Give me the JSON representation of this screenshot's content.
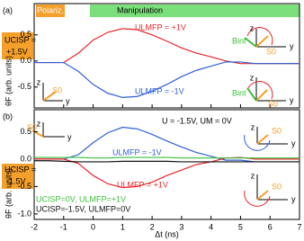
{
  "chart_data": [
    {
      "type": "line",
      "panel_label": "(a)",
      "ylabel": "θF (arb. units)",
      "x": [
        -2,
        -1.5,
        -1,
        -0.5,
        0,
        0.5,
        1,
        1.5,
        2,
        2.5,
        3,
        3.5,
        4,
        4.5,
        5,
        5.5,
        6,
        6.5,
        7
      ],
      "xlim": [
        -2,
        7
      ],
      "xticks": [
        -2,
        -1,
        0,
        1,
        2,
        3,
        4,
        5,
        6,
        7
      ],
      "ylim": [
        -0.9,
        1.1
      ],
      "yticks": [
        {
          "value": -0.5,
          "label": "-0.5"
        },
        {
          "value": 0,
          "label": "0.0"
        },
        {
          "value": 0.5,
          "label": "0.5"
        }
      ],
      "series": [
        {
          "name": "ULMFP = +1V",
          "color": "#e8252a",
          "values": [
            -0.03,
            -0.03,
            -0.03,
            0.15,
            0.4,
            0.55,
            0.62,
            0.6,
            0.5,
            0.38,
            0.25,
            0.15,
            0.08,
            0.0,
            -0.05,
            -0.05,
            -0.05,
            -0.05,
            -0.05
          ]
        },
        {
          "name": "ULMFP = -1V",
          "color": "#2f5fd8",
          "values": [
            -0.03,
            -0.03,
            -0.03,
            -0.2,
            -0.45,
            -0.62,
            -0.7,
            -0.68,
            -0.58,
            -0.45,
            -0.3,
            -0.18,
            -0.1,
            -0.02,
            -0.02,
            -0.05,
            -0.05,
            -0.05,
            -0.05
          ]
        }
      ],
      "annotations": [
        "Polariz.",
        "Manipulation",
        "UCISP =",
        "+1.5V",
        "z",
        "y",
        "S0",
        "z",
        "y",
        "Bint",
        "S0",
        "z",
        "y",
        "Bint",
        "S0"
      ]
    },
    {
      "type": "line",
      "panel_label": "(b)",
      "ylabel": "θF (arb. units)",
      "xlabel": "Δt (ns)",
      "x": [
        -2,
        -1.5,
        -1,
        -0.5,
        0,
        0.5,
        1,
        1.5,
        2,
        2.5,
        3,
        3.5,
        4,
        4.5,
        5,
        5.5,
        6,
        6.5,
        7
      ],
      "xlim": [
        -2,
        7
      ],
      "xticks": [
        -2,
        -1,
        0,
        1,
        2,
        3,
        4,
        5,
        6,
        7
      ],
      "ylim": [
        -1.1,
        0.9
      ],
      "yticks": [
        {
          "value": -1,
          "label": "-1.0"
        },
        {
          "value": -0.5,
          "label": "-0.5"
        },
        {
          "value": 0,
          "label": "0.0"
        },
        {
          "value": 0.5,
          "label": "0.5"
        }
      ],
      "series": [
        {
          "name": "ULMFP = -1V",
          "color": "#2f5fd8",
          "values": [
            0,
            0,
            0,
            0.08,
            0.3,
            0.48,
            0.58,
            0.55,
            0.45,
            0.33,
            0.22,
            0.12,
            0.05,
            -0.02,
            -0.02,
            -0.05,
            -0.05,
            -0.05,
            -0.05
          ]
        },
        {
          "name": "ULMFP = +1V",
          "color": "#e8252a",
          "values": [
            0,
            0,
            0,
            -0.08,
            -0.3,
            -0.45,
            -0.52,
            -0.5,
            -0.42,
            -0.3,
            -0.2,
            -0.1,
            -0.05,
            0.02,
            0.03,
            0,
            0,
            0,
            0
          ]
        },
        {
          "name": "UCISP=0V, ULMFP=+1V",
          "color": "#3bbf3b",
          "values": [
            0.03,
            0.03,
            0.03,
            0.03,
            0.02,
            0.02,
            0.03,
            0.03,
            0.03,
            0.03,
            0.02,
            0.02,
            0.02,
            0.02,
            0.02,
            0.02,
            0.02,
            0.02,
            0.02
          ]
        },
        {
          "name": "UCISP=-1.5V, ULMFP=0V",
          "color": "#111111",
          "values": [
            -0.03,
            -0.03,
            -0.04,
            -0.05,
            -0.05,
            -0.05,
            -0.04,
            -0.04,
            -0.04,
            -0.04,
            -0.05,
            -0.05,
            -0.05,
            -0.05,
            -0.05,
            -0.05,
            -0.05,
            -0.05,
            -0.05
          ]
        }
      ],
      "annotations": [
        "U = -1.5V, UM = 0V",
        "UCISP =",
        "-1.5V",
        "z",
        "y",
        "S0",
        "z",
        "y",
        "S0",
        "z",
        "y",
        "S0"
      ]
    }
  ]
}
